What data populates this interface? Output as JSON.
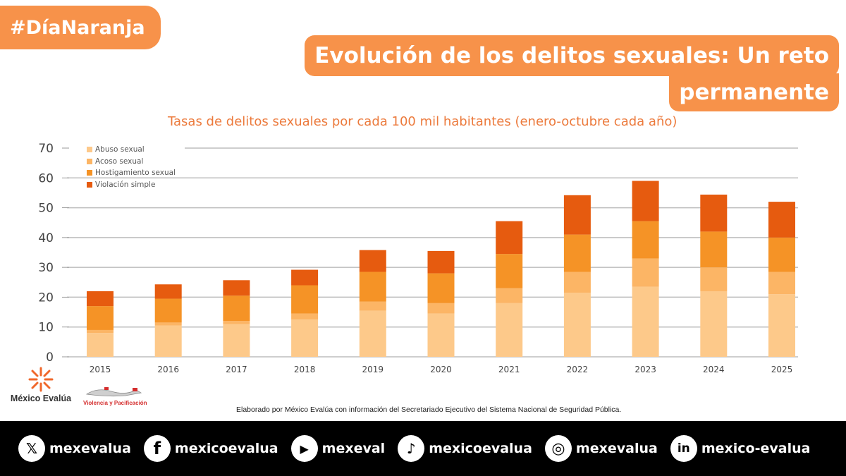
{
  "hashtag": "#DíaNaranja",
  "headline": {
    "line1": "Evolución de los delitos sexuales: Un reto",
    "line2": "permanente"
  },
  "colors": {
    "accent": "#f7924a",
    "abuso": "#fdc98a",
    "acoso": "#fcb565",
    "hostigamiento": "#f59326",
    "violacion": "#e65b0f"
  },
  "chart_data": {
    "type": "bar",
    "stacked": true,
    "title": "Tasas de delitos sexuales por cada 100 mil habitantes (enero-octubre cada año)",
    "categories": [
      "2015",
      "2016",
      "2017",
      "2018",
      "2019",
      "2020",
      "2021",
      "2022",
      "2023",
      "2024",
      "2025"
    ],
    "ylim": [
      0,
      70
    ],
    "yticks": [
      0,
      10,
      20,
      30,
      40,
      50,
      60,
      70
    ],
    "grid": true,
    "legend_position": "top-left",
    "series": [
      {
        "name": "Abuso sexual",
        "values": [
          8.0,
          10.5,
          11.0,
          12.5,
          15.5,
          14.5,
          18.0,
          21.5,
          23.5,
          22.0,
          21.0
        ]
      },
      {
        "name": "Acoso sexual",
        "values": [
          1.0,
          1.0,
          1.0,
          2.0,
          3.0,
          3.5,
          5.0,
          7.0,
          9.5,
          8.0,
          7.5
        ]
      },
      {
        "name": "Hostigamiento sexual",
        "values": [
          8.0,
          8.0,
          8.5,
          9.5,
          10.0,
          10.0,
          11.5,
          12.5,
          12.5,
          12.0,
          11.5
        ]
      },
      {
        "name": "Violación simple",
        "values": [
          5.0,
          4.8,
          5.2,
          5.2,
          7.3,
          7.5,
          11.0,
          13.2,
          13.5,
          12.4,
          12.0
        ]
      }
    ]
  },
  "logos": {
    "mexico_evalua": "México Evalúa",
    "violencia_pacificacion": "Violencia y Pacificación"
  },
  "source": "Elaborado por México Evalúa con información del Secretariado Ejecutivo del Sistema Nacional de Seguridad Pública.",
  "footer": {
    "socials": [
      {
        "icon": "x-icon",
        "glyph": "𝕏",
        "label": "mexevalua"
      },
      {
        "icon": "facebook-icon",
        "glyph": "f",
        "label": "mexicoevalua"
      },
      {
        "icon": "youtube-icon",
        "glyph": "▶",
        "label": "mexeval"
      },
      {
        "icon": "tiktok-icon",
        "glyph": "♪",
        "label": "mexicoevalua"
      },
      {
        "icon": "instagram-icon",
        "glyph": "◎",
        "label": "mexevalua"
      },
      {
        "icon": "linkedin-icon",
        "glyph": "in",
        "label": "mexico-evalua"
      }
    ]
  }
}
